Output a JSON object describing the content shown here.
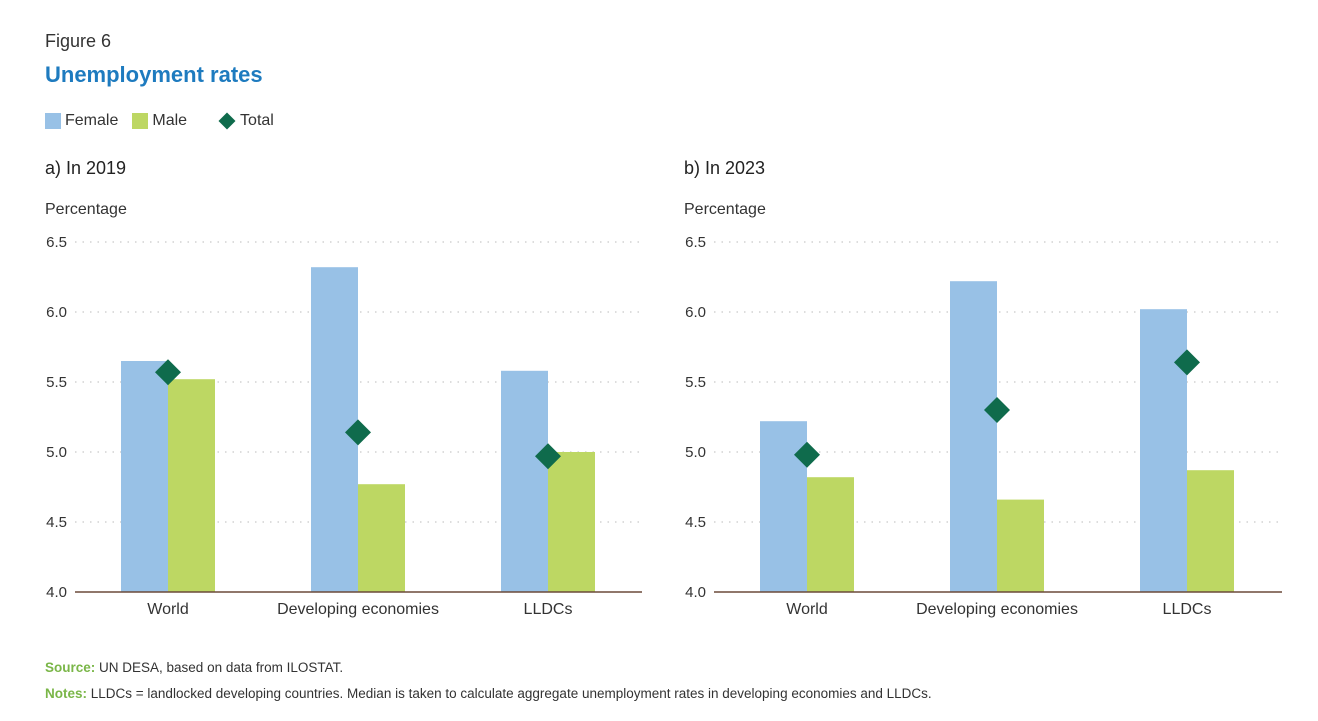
{
  "figure_label": "Figure 6",
  "title": "Unemployment rates",
  "legend": [
    {
      "label": "Female",
      "color": "#98c1e6",
      "shape": "square"
    },
    {
      "label": "Male",
      "color": "#bdd763",
      "shape": "square"
    },
    {
      "label": "Total",
      "color": "#0f6b4c",
      "shape": "diamond"
    }
  ],
  "chart_data": [
    {
      "type": "bar",
      "title": "a)  In 2019",
      "ylabel": "Percentage",
      "ylim": [
        4.0,
        6.5
      ],
      "yticks": [
        "4.0",
        "4.5",
        "5.0",
        "5.5",
        "6.0",
        "6.5"
      ],
      "grid": true,
      "categories": [
        "World",
        "Developing economies",
        "LLDCs"
      ],
      "series": [
        {
          "name": "Female",
          "type": "bar",
          "color": "#98c1e6",
          "values": [
            5.65,
            6.32,
            5.58
          ]
        },
        {
          "name": "Male",
          "type": "bar",
          "color": "#bdd763",
          "values": [
            5.52,
            4.77,
            5.0
          ]
        },
        {
          "name": "Total",
          "type": "marker",
          "color": "#0f6b4c",
          "values": [
            5.57,
            5.14,
            4.97
          ]
        }
      ]
    },
    {
      "type": "bar",
      "title": "b)  In 2023",
      "ylabel": "Percentage",
      "ylim": [
        4.0,
        6.5
      ],
      "yticks": [
        "4.0",
        "4.5",
        "5.0",
        "5.5",
        "6.0",
        "6.5"
      ],
      "grid": true,
      "categories": [
        "World",
        "Developing economies",
        "LLDCs"
      ],
      "series": [
        {
          "name": "Female",
          "type": "bar",
          "color": "#98c1e6",
          "values": [
            5.22,
            6.22,
            6.02
          ]
        },
        {
          "name": "Male",
          "type": "bar",
          "color": "#bdd763",
          "values": [
            4.82,
            4.66,
            4.87
          ]
        },
        {
          "name": "Total",
          "type": "marker",
          "color": "#0f6b4c",
          "values": [
            4.98,
            5.3,
            5.64
          ]
        }
      ]
    }
  ],
  "footnotes": {
    "source_key": "Source:",
    "source_text": " UN DESA, based on data from ILOSTAT.",
    "notes_key": "Notes:",
    "notes_text": " LLDCs = landlocked developing countries. Median is taken to calculate aggregate unemployment rates in developing economies and LLDCs."
  }
}
